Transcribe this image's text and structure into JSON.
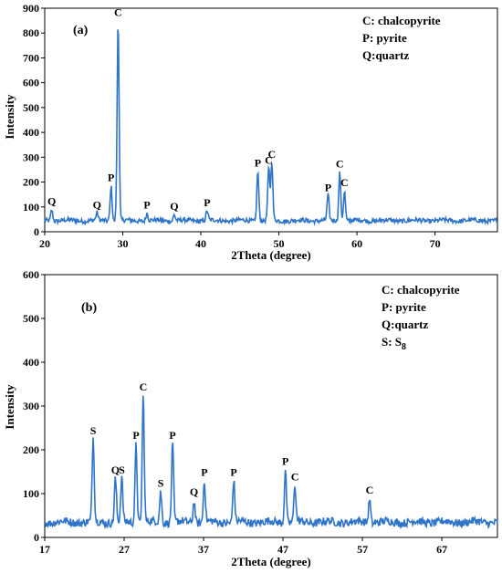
{
  "chart_data": [
    {
      "type": "line",
      "panel_label": "(a)",
      "xlabel": "2Theta (degree)",
      "ylabel": "Intensity",
      "xlim": [
        20,
        78
      ],
      "ylim": [
        0,
        900
      ],
      "x_ticks": [
        20,
        30,
        40,
        50,
        60,
        70
      ],
      "y_ticks": [
        0,
        100,
        200,
        300,
        400,
        500,
        600,
        700,
        800,
        900
      ],
      "grid": false,
      "legend_position": "top-right",
      "legend": [
        "C: chalcopyrite",
        "P: pyrite",
        "Q:quartz"
      ],
      "color": "#2e75c9",
      "baseline": 45,
      "peaks": [
        {
          "x": 20.9,
          "y": 90,
          "label": "Q"
        },
        {
          "x": 26.7,
          "y": 75,
          "label": "Q"
        },
        {
          "x": 28.5,
          "y": 185,
          "label": "P"
        },
        {
          "x": 29.4,
          "y": 850,
          "label": "C"
        },
        {
          "x": 33.1,
          "y": 75,
          "label": "P"
        },
        {
          "x": 36.6,
          "y": 70,
          "label": "Q"
        },
        {
          "x": 40.8,
          "y": 85,
          "label": "P"
        },
        {
          "x": 47.3,
          "y": 245,
          "label": "P"
        },
        {
          "x": 48.7,
          "y": 255,
          "label": "C"
        },
        {
          "x": 49.1,
          "y": 280,
          "label": "C"
        },
        {
          "x": 56.3,
          "y": 145,
          "label": "P"
        },
        {
          "x": 57.8,
          "y": 240,
          "label": "C"
        },
        {
          "x": 58.4,
          "y": 165,
          "label": "C"
        }
      ]
    },
    {
      "type": "line",
      "panel_label": "(b)",
      "xlabel": "2Theta (degree)",
      "ylabel": "Intensity",
      "xlim": [
        17,
        74
      ],
      "ylim": [
        0,
        600
      ],
      "x_ticks": [
        17,
        27,
        37,
        47,
        57,
        67
      ],
      "y_ticks": [
        0,
        100,
        200,
        300,
        400,
        500,
        600
      ],
      "grid": false,
      "legend_position": "top-right",
      "legend": [
        "C: chalcopyrite",
        "P: pyrite",
        "Q:quartz",
        "S: S"
      ],
      "legend_subscript": "8",
      "color": "#2e75c9",
      "baseline": 35,
      "peaks": [
        {
          "x": 23.1,
          "y": 225,
          "label": "S"
        },
        {
          "x": 25.9,
          "y": 135,
          "label": "Q"
        },
        {
          "x": 26.7,
          "y": 135,
          "label": "S"
        },
        {
          "x": 28.5,
          "y": 215,
          "label": "P"
        },
        {
          "x": 29.4,
          "y": 325,
          "label": "C"
        },
        {
          "x": 31.6,
          "y": 105,
          "label": "S"
        },
        {
          "x": 33.1,
          "y": 215,
          "label": "P"
        },
        {
          "x": 35.8,
          "y": 85,
          "label": "Q"
        },
        {
          "x": 37.1,
          "y": 130,
          "label": "P"
        },
        {
          "x": 40.8,
          "y": 130,
          "label": "P"
        },
        {
          "x": 47.3,
          "y": 155,
          "label": "P"
        },
        {
          "x": 48.5,
          "y": 120,
          "label": "C"
        },
        {
          "x": 57.9,
          "y": 90,
          "label": "C"
        }
      ]
    }
  ]
}
